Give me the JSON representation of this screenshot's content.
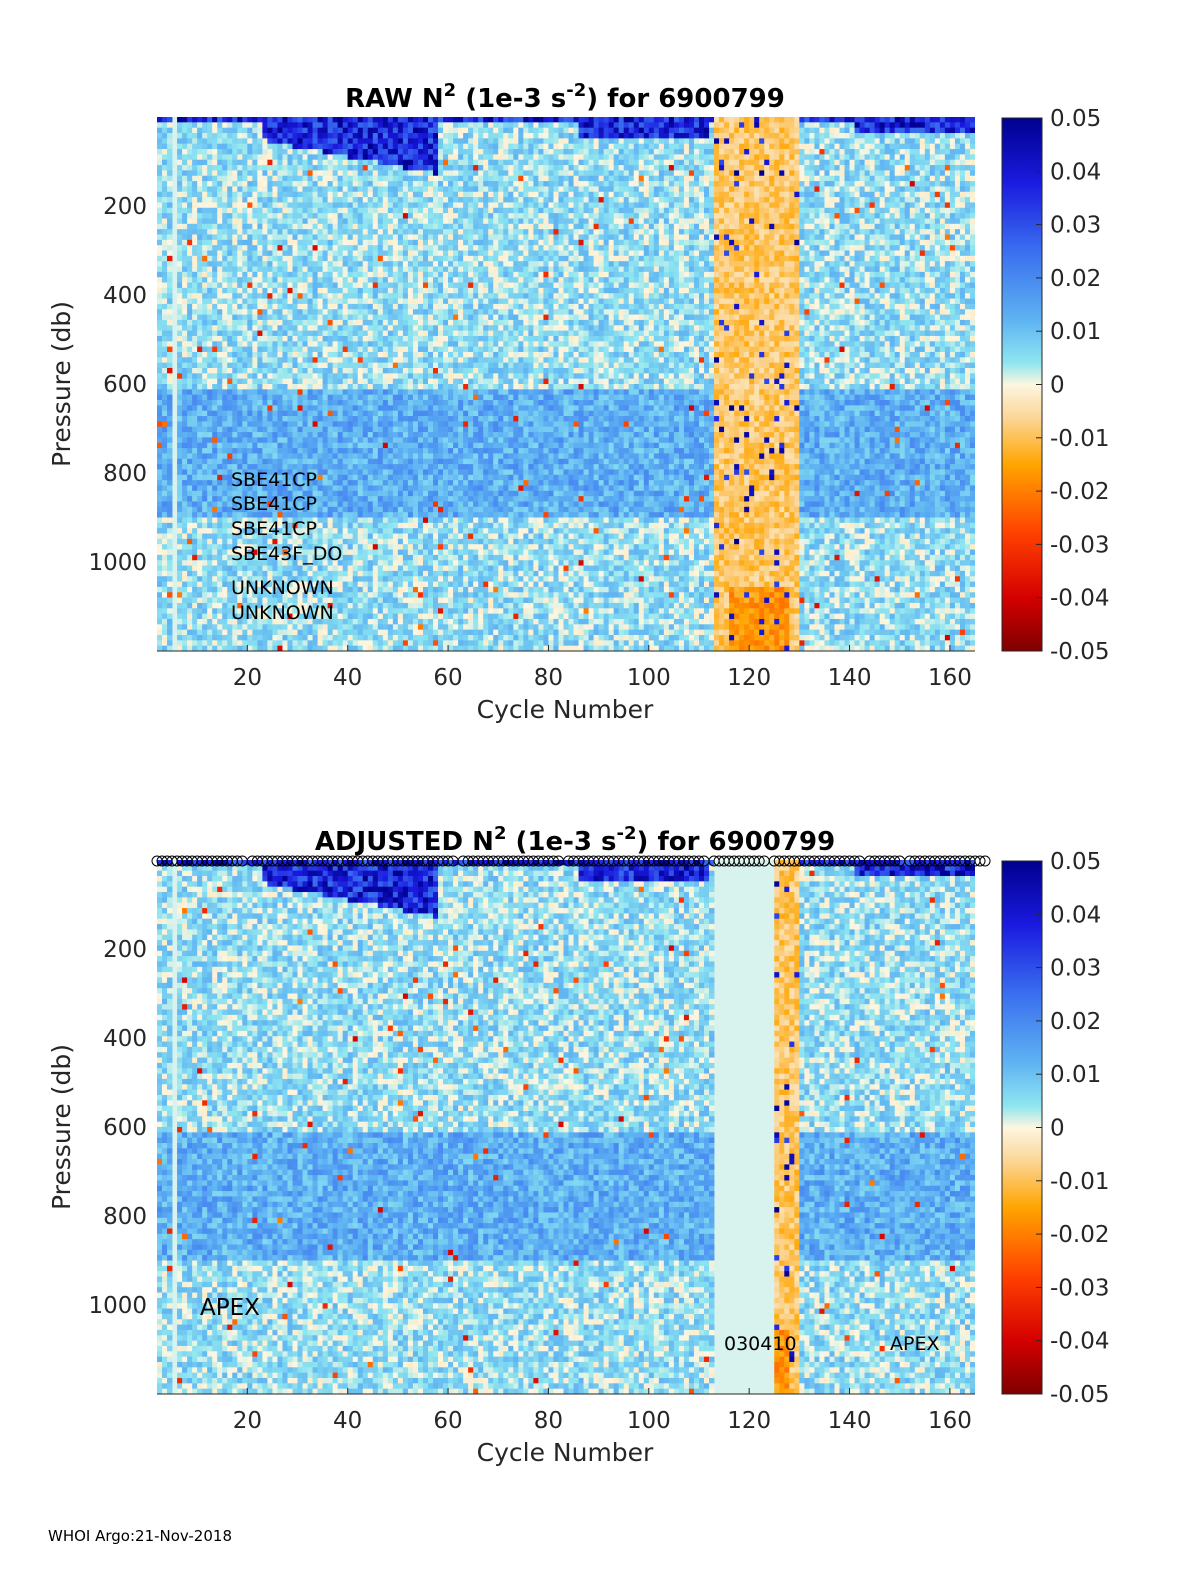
{
  "footer": "WHOI Argo:21-Nov-2018",
  "chart_data": [
    {
      "type": "heatmap",
      "title_main": "RAW N",
      "title_sup": "2",
      "title_mid": " (1e-3 s",
      "title_sup2": "-2",
      "title_end": ") for 6900799",
      "xlabel": "Cycle Number",
      "ylabel": "Pressure (db)",
      "xlim": [
        2,
        165
      ],
      "ylim": [
        1200,
        0
      ],
      "xticks": [
        20,
        40,
        60,
        80,
        100,
        120,
        140,
        160
      ],
      "yticks": [
        200,
        400,
        600,
        800,
        1000
      ],
      "clim": [
        -0.05,
        0.05
      ],
      "colorbar_ticks": [
        "0.05",
        "0.04",
        "0.03",
        "0.02",
        "0.01",
        "0",
        "-0.01",
        "-0.02",
        "-0.03",
        "-0.04",
        "-0.05"
      ],
      "annotations": [
        "SBE41CP",
        "SBE41CP",
        "SBE41CP",
        "SBE43F_DO",
        "UNKNOWN",
        "UNKNOWN"
      ],
      "missing_cycles": [],
      "positive_cycles": [
        [
          113,
          130
        ]
      ]
    },
    {
      "type": "heatmap",
      "title_main": "ADJUSTED N",
      "title_sup": "2",
      "title_mid": " (1e-3 s",
      "title_sup2": "-2",
      "title_end": ") for 6900799",
      "xlabel": "Cycle Number",
      "ylabel": "Pressure (db)",
      "xlim": [
        2,
        165
      ],
      "ylim": [
        1200,
        0
      ],
      "xticks": [
        20,
        40,
        60,
        80,
        100,
        120,
        140,
        160
      ],
      "yticks": [
        200,
        400,
        600,
        800,
        1000
      ],
      "clim": [
        -0.05,
        0.05
      ],
      "colorbar_ticks": [
        "0.05",
        "0.04",
        "0.03",
        "0.02",
        "0.01",
        "0",
        "-0.01",
        "-0.02",
        "-0.03",
        "-0.04",
        "-0.05"
      ],
      "annotations": [
        "APEX",
        "030410",
        "APEX"
      ],
      "missing_cycles": [
        [
          113,
          125
        ]
      ],
      "positive_cycles": [
        [
          125,
          130
        ]
      ]
    }
  ]
}
